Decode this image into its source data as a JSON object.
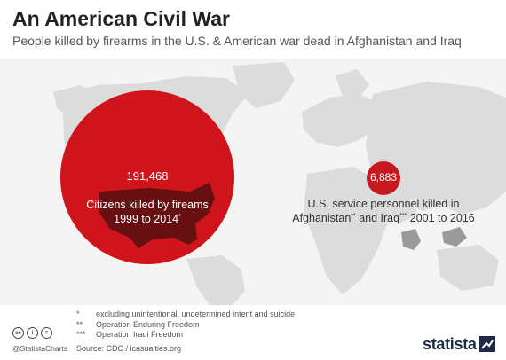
{
  "title": "An American Civil War",
  "subtitle": "People killed by firearms in the U.S. & American war dead in Afghanistan and Iraq",
  "chart_data": {
    "type": "bubble-map",
    "series": [
      {
        "value": 191468,
        "value_label": "191,468",
        "label_line1": "Citizens killed by fireams",
        "label_line2": "1999 to 2014",
        "label_mark": "*"
      },
      {
        "value": 6883,
        "value_label": "6,883",
        "label_line1": "U.S. service personnel killed in",
        "label_line2_a": "Afghanistan",
        "label_line2_a_mark": "**",
        "label_line2_b": " and Iraq",
        "label_line2_b_mark": "***",
        "label_line2_c": " 2001 to 2016"
      }
    ],
    "colors": {
      "bubble_large": "#d0141c",
      "bubble_small": "#c8181f",
      "map_land": "#d9d9d9",
      "highlight_country": "#5a0f12",
      "highlight_conflict": "#9a9a9a"
    }
  },
  "footnotes": [
    {
      "mark": "*",
      "text": "excluding unintentional, undetermined intent and suicide"
    },
    {
      "mark": "**",
      "text": "Operation Enduring Freedom"
    },
    {
      "mark": "***",
      "text": "Operation Iraqi Freedom"
    }
  ],
  "source": "Source: CDC / icasualties.org",
  "handle": "@StatistaCharts",
  "cc_icons": [
    "cc-icon",
    "by-icon",
    "equals-icon"
  ],
  "logo": "statista"
}
